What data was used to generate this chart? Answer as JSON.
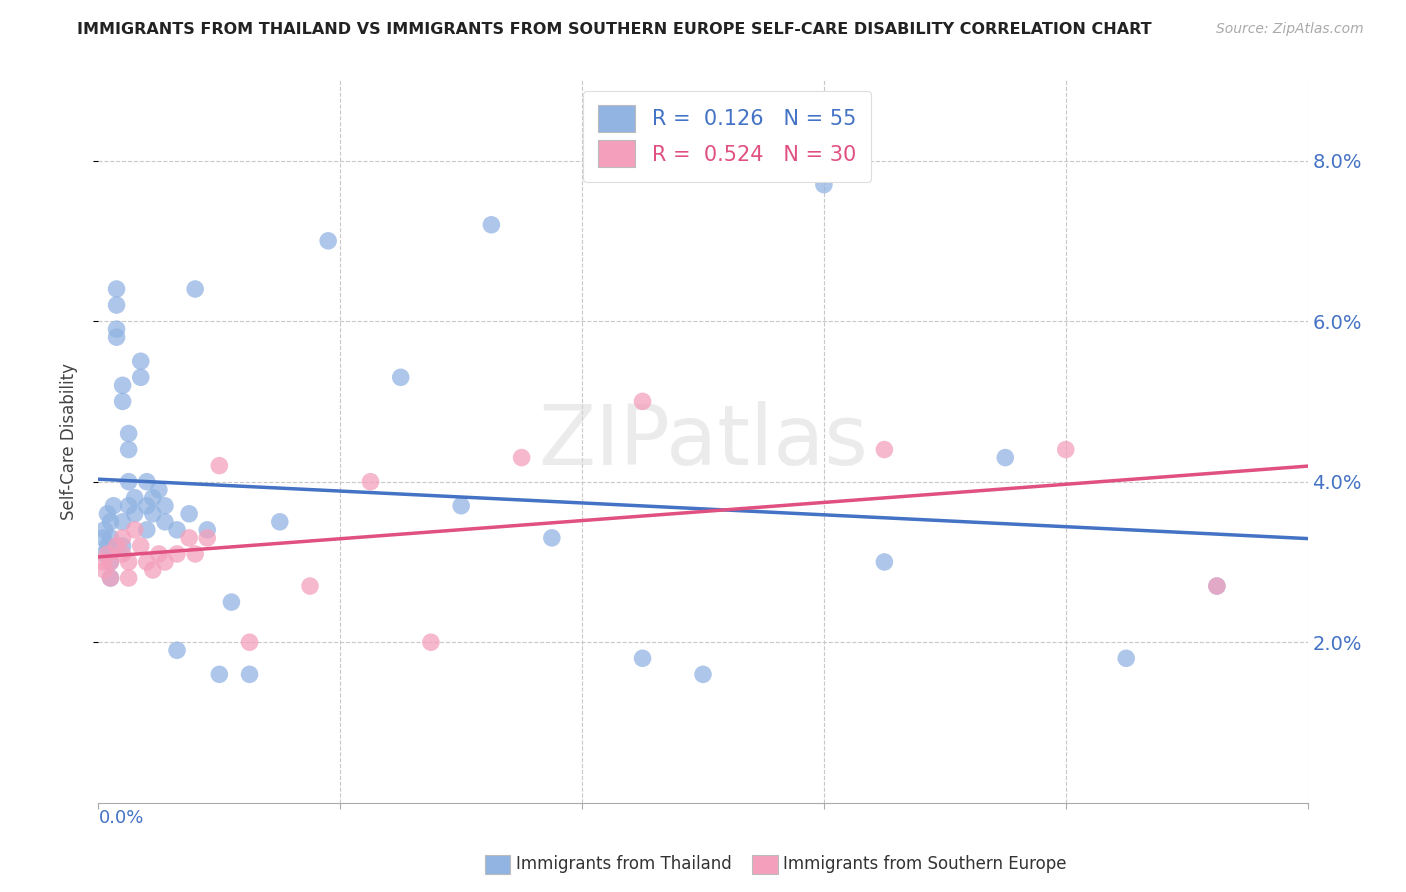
{
  "title": "IMMIGRANTS FROM THAILAND VS IMMIGRANTS FROM SOUTHERN EUROPE SELF-CARE DISABILITY CORRELATION CHART",
  "source": "Source: ZipAtlas.com",
  "ylabel": "Self-Care Disability",
  "legend_label1": "Immigrants from Thailand",
  "legend_label2": "Immigrants from Southern Europe",
  "r1": 0.126,
  "n1": 55,
  "r2": 0.524,
  "n2": 30,
  "color_thailand": "#92b4e3",
  "color_s_europe": "#f4a0bc",
  "color_thailand_line": "#4472c4",
  "color_s_europe_line": "#e05080",
  "watermark": "ZIPatlas",
  "xlim": [
    0.0,
    0.2
  ],
  "ylim": [
    0.0,
    0.09
  ],
  "yticks": [
    0.02,
    0.04,
    0.06,
    0.08
  ],
  "xticks": [
    0.0,
    0.04,
    0.08,
    0.12,
    0.16,
    0.2
  ],
  "thailand_x": [
    0.0008,
    0.001,
    0.001,
    0.0015,
    0.0015,
    0.002,
    0.002,
    0.002,
    0.002,
    0.0025,
    0.003,
    0.003,
    0.003,
    0.003,
    0.004,
    0.004,
    0.004,
    0.004,
    0.005,
    0.005,
    0.005,
    0.005,
    0.006,
    0.006,
    0.007,
    0.007,
    0.008,
    0.008,
    0.008,
    0.009,
    0.009,
    0.01,
    0.011,
    0.011,
    0.013,
    0.013,
    0.015,
    0.016,
    0.018,
    0.02,
    0.022,
    0.025,
    0.03,
    0.038,
    0.05,
    0.06,
    0.065,
    0.075,
    0.09,
    0.1,
    0.12,
    0.13,
    0.15,
    0.17,
    0.185
  ],
  "thailand_y": [
    0.033,
    0.034,
    0.031,
    0.036,
    0.032,
    0.035,
    0.033,
    0.03,
    0.028,
    0.037,
    0.059,
    0.058,
    0.062,
    0.064,
    0.052,
    0.05,
    0.035,
    0.032,
    0.046,
    0.044,
    0.04,
    0.037,
    0.038,
    0.036,
    0.055,
    0.053,
    0.04,
    0.037,
    0.034,
    0.038,
    0.036,
    0.039,
    0.037,
    0.035,
    0.034,
    0.019,
    0.036,
    0.064,
    0.034,
    0.016,
    0.025,
    0.016,
    0.035,
    0.07,
    0.053,
    0.037,
    0.072,
    0.033,
    0.018,
    0.016,
    0.077,
    0.03,
    0.043,
    0.018,
    0.027
  ],
  "s_europe_x": [
    0.0008,
    0.001,
    0.0015,
    0.002,
    0.002,
    0.003,
    0.004,
    0.004,
    0.005,
    0.005,
    0.006,
    0.007,
    0.008,
    0.009,
    0.01,
    0.011,
    0.013,
    0.015,
    0.016,
    0.018,
    0.02,
    0.025,
    0.035,
    0.045,
    0.055,
    0.07,
    0.09,
    0.13,
    0.16,
    0.185
  ],
  "s_europe_y": [
    0.03,
    0.029,
    0.031,
    0.03,
    0.028,
    0.032,
    0.033,
    0.031,
    0.03,
    0.028,
    0.034,
    0.032,
    0.03,
    0.029,
    0.031,
    0.03,
    0.031,
    0.033,
    0.031,
    0.033,
    0.042,
    0.02,
    0.027,
    0.04,
    0.02,
    0.043,
    0.05,
    0.044,
    0.044,
    0.027
  ]
}
